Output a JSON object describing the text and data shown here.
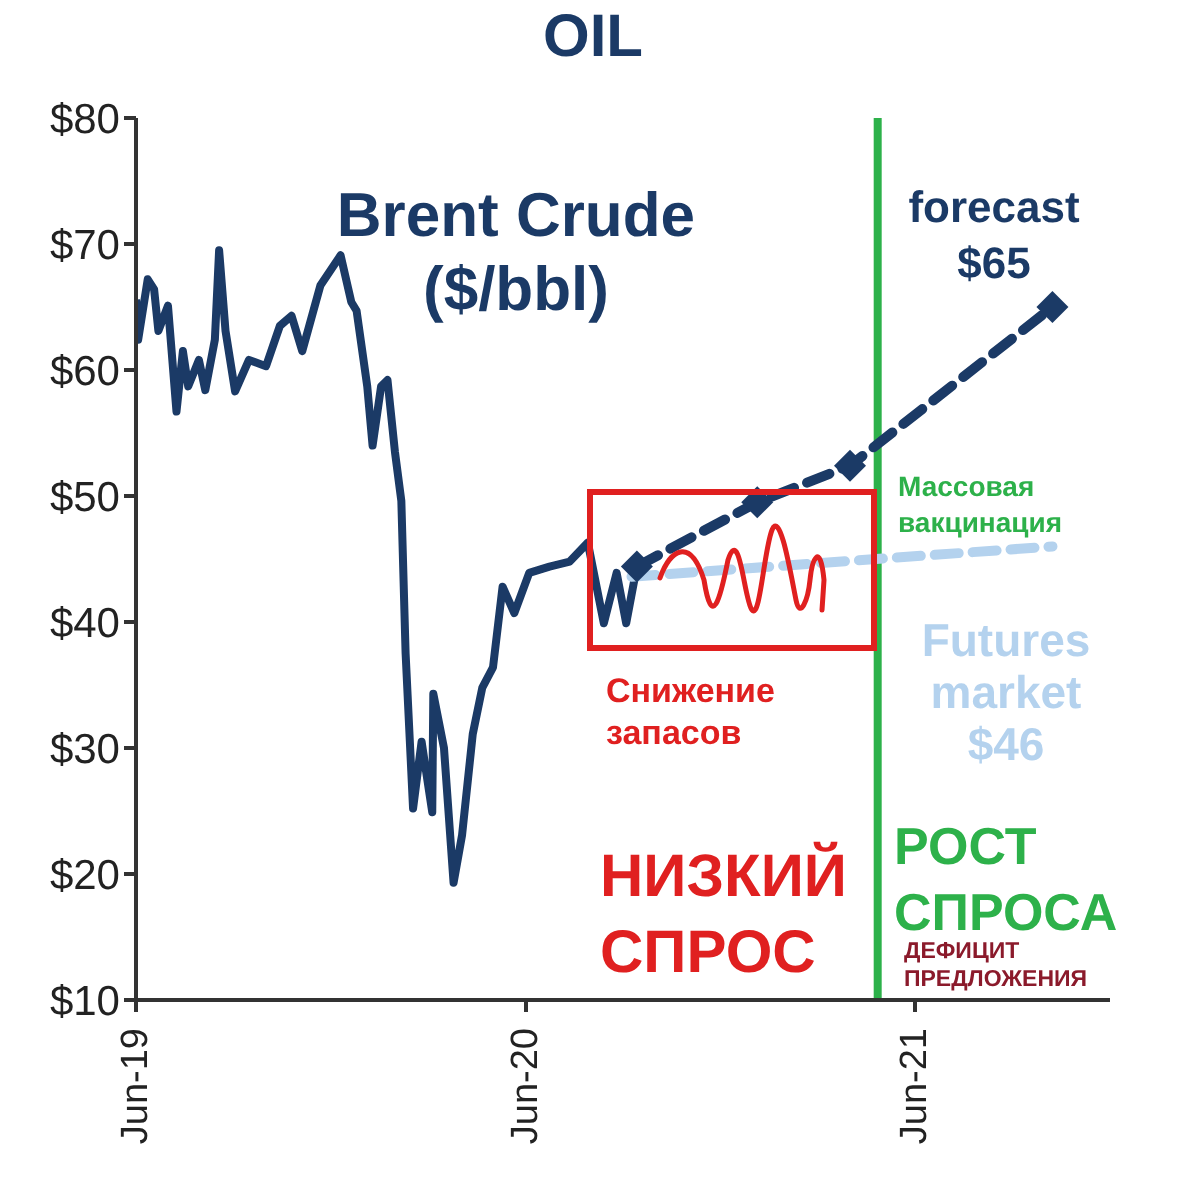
{
  "chart_data": {
    "type": "line",
    "title": "OIL",
    "xlim": [
      "2019-06-01",
      "2021-12-01"
    ],
    "xticks": [
      {
        "value": "2019-06-01",
        "label": "Jun-19"
      },
      {
        "value": "2020-06-01",
        "label": "Jun-20"
      },
      {
        "value": "2021-06-01",
        "label": "Jun-21"
      }
    ],
    "ylim": [
      10,
      80
    ],
    "yticks": [
      {
        "value": 10,
        "label": "$10"
      },
      {
        "value": 20,
        "label": "$20"
      },
      {
        "value": 30,
        "label": "$30"
      },
      {
        "value": 40,
        "label": "$40"
      },
      {
        "value": 50,
        "label": "$50"
      },
      {
        "value": 60,
        "label": "$60"
      },
      {
        "value": 70,
        "label": "$70"
      },
      {
        "value": 80,
        "label": "$80"
      }
    ],
    "grid": false,
    "legend": false,
    "series": [
      {
        "name": "Brent Crude ($/bbl)",
        "color": "#1b3a66",
        "line_style": "solid",
        "marker": "none",
        "x": [
          "2019-06-01",
          "2019-06-03",
          "2019-06-12",
          "2019-06-18",
          "2019-06-22",
          "2019-07-01",
          "2019-07-09",
          "2019-07-15",
          "2019-07-20",
          "2019-07-30",
          "2019-08-05",
          "2019-08-14",
          "2019-08-18",
          "2019-08-24",
          "2019-09-02",
          "2019-09-15",
          "2019-10-01",
          "2019-10-14",
          "2019-10-25",
          "2019-11-04",
          "2019-11-21",
          "2019-12-10",
          "2019-12-20",
          "2019-12-25",
          "2020-01-04",
          "2020-01-09",
          "2020-01-17",
          "2020-01-23",
          "2020-01-30",
          "2020-02-05",
          "2020-02-09",
          "2020-02-16",
          "2020-02-24",
          "2020-03-05",
          "2020-03-06",
          "2020-03-16",
          "2020-03-25",
          "2020-04-02",
          "2020-04-12",
          "2020-04-21",
          "2020-05-01",
          "2020-05-10",
          "2020-05-21",
          "2020-06-04",
          "2020-06-23",
          "2020-07-12",
          "2020-07-29",
          "2020-08-13",
          "2020-08-25",
          "2020-09-03",
          "2020-09-13"
        ],
        "values": [
          65.6,
          62.4,
          67.2,
          66.4,
          63.1,
          65.1,
          56.7,
          61.5,
          58.7,
          60.8,
          58.4,
          62.4,
          69.5,
          63.1,
          58.3,
          60.8,
          60.3,
          63.5,
          64.3,
          61.5,
          66.7,
          69.1,
          65.4,
          64.7,
          58.7,
          54.0,
          58.7,
          59.2,
          53.5,
          49.6,
          37.5,
          25.2,
          30.5,
          24.9,
          34.3,
          30.0,
          19.3,
          23.1,
          31.1,
          34.8,
          36.4,
          42.8,
          40.7,
          43.9,
          44.4,
          44.8,
          46.3,
          39.9,
          43.9,
          39.9,
          44.4
        ]
      },
      {
        "name": "forecast $65",
        "color": "#1b3a66",
        "line_style": "dashed",
        "marker": "diamond",
        "x": [
          "2020-09-13",
          "2021-01-04",
          "2021-04-01",
          "2021-10-08"
        ],
        "values": [
          44.4,
          49.5,
          52.4,
          65
        ]
      },
      {
        "name": "Futures market $46",
        "color": "#b4d2ee",
        "line_style": "dashed",
        "marker": "none",
        "x": [
          "2020-09-08",
          "2021-10-08"
        ],
        "values": [
          43.6,
          46
        ]
      }
    ],
    "ref_lines": [
      {
        "axis": "x",
        "value": "2021-04-27",
        "label": "Массовая вакцинация",
        "color": "#2db14a",
        "line_style": "solid"
      }
    ],
    "annotations": [
      "Снижение запасов",
      "НИЗКИЙ СПРОС",
      "РОСТ СПРОСА",
      "ДЕФИЦИТ ПРЕДЛОЖЕНИЯ"
    ]
  }
}
